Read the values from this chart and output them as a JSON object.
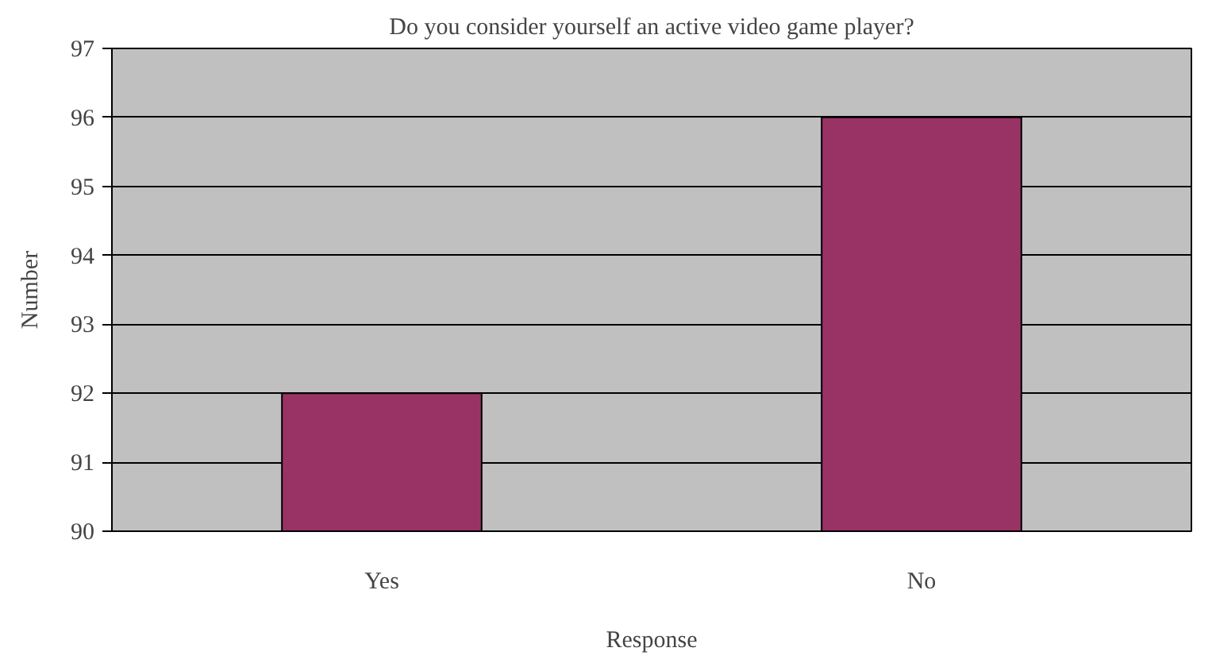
{
  "chart_data": {
    "type": "bar",
    "title": "Do you consider yourself an active video game player?",
    "xlabel": "Response",
    "ylabel": "Number",
    "categories": [
      "Yes",
      "No"
    ],
    "values": [
      92,
      96
    ],
    "color": "#993366",
    "ylim": [
      90,
      97
    ],
    "yticks": [
      90,
      91,
      92,
      93,
      94,
      95,
      96,
      97
    ],
    "grid": "y"
  }
}
